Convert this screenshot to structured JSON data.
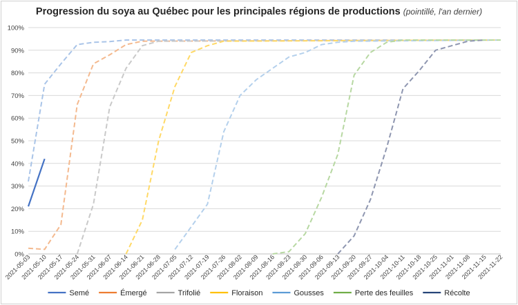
{
  "chart_data": {
    "type": "line",
    "title": "Progression du soya au Québec pour les principales régions de productions",
    "subtitle": "(pointillé, l'an dernier)",
    "xlabel": "",
    "ylabel": "",
    "ylim": [
      0,
      100
    ],
    "y_ticks": [
      "0%",
      "10%",
      "20%",
      "30%",
      "40%",
      "50%",
      "60%",
      "70%",
      "80%",
      "90%",
      "100%"
    ],
    "categories": [
      "2021-05-03",
      "2021-05-10",
      "2021-05-17",
      "2021-05-24",
      "2021-05-31",
      "2021-06-07",
      "2021-06-14",
      "2021-06-21",
      "2021-06-28",
      "2021-07-05",
      "2021-07-12",
      "2021-07-19",
      "2021-07-26",
      "2021-08-02",
      "2021-08-09",
      "2021-08-16",
      "2021-08-23",
      "2021-08-30",
      "2021-09-06",
      "2021-09-13",
      "2021-09-20",
      "2021-09-27",
      "2021-10-04",
      "2021-10-11",
      "2021-10-18",
      "2021-10-25",
      "2021-11-01",
      "2021-11-08",
      "2021-11-15",
      "2021-11-22"
    ],
    "grid": true,
    "legend_position": "bottom",
    "series": [
      {
        "name": "Semé",
        "color": "#4472C4",
        "dashed": false,
        "x": [
          0,
          1
        ],
        "values": [
          21,
          42
        ]
      },
      {
        "name": "Émergé",
        "color": "#ED7D31",
        "dashed": false,
        "x": [],
        "values": []
      },
      {
        "name": "Trifolié",
        "color": "#A5A5A5",
        "dashed": false,
        "x": [],
        "values": []
      },
      {
        "name": "Floraison",
        "color": "#FFC000",
        "dashed": false,
        "x": [],
        "values": []
      },
      {
        "name": "Gousses",
        "color": "#5B9BD5",
        "dashed": false,
        "x": [],
        "values": []
      },
      {
        "name": "Perte des feuilles",
        "color": "#70AD47",
        "dashed": false,
        "x": [],
        "values": []
      },
      {
        "name": "Récolte",
        "color": "#264478",
        "dashed": false,
        "x": [],
        "values": []
      },
      {
        "name": "",
        "color": "#A9C4E8",
        "dashed": true,
        "x": [
          0,
          1,
          2,
          3,
          4,
          5,
          6,
          29
        ],
        "values": [
          32,
          75,
          84,
          92.5,
          93.5,
          93.8,
          94.5,
          94.5
        ]
      },
      {
        "name": "",
        "color": "#F4B98E",
        "dashed": true,
        "x": [
          0,
          1,
          2,
          3,
          4,
          5,
          6,
          7,
          29
        ],
        "values": [
          2.5,
          2,
          13,
          66,
          84,
          88,
          92.5,
          94,
          94.5
        ]
      },
      {
        "name": "",
        "color": "#C9C9C9",
        "dashed": true,
        "x": [
          3,
          4,
          5,
          6,
          7,
          8,
          29
        ],
        "values": [
          0,
          22,
          65,
          82,
          92,
          94,
          94.5
        ]
      },
      {
        "name": "",
        "color": "#FFD966",
        "dashed": true,
        "x": [
          6,
          7,
          8,
          9,
          10,
          11,
          12,
          29
        ],
        "values": [
          0,
          15,
          50,
          74,
          89,
          92,
          94,
          94.5
        ]
      },
      {
        "name": "",
        "color": "#B4D0EC",
        "dashed": true,
        "x": [
          9,
          10,
          11,
          12,
          13,
          14,
          15,
          16,
          17,
          18,
          19,
          20,
          29
        ],
        "values": [
          2,
          12,
          22,
          54,
          70,
          77,
          82,
          87,
          89,
          92.5,
          93.5,
          94,
          94.5
        ]
      },
      {
        "name": "",
        "color": "#B7D8A2",
        "dashed": true,
        "x": [
          15,
          16,
          17,
          18,
          19,
          20,
          21,
          22,
          23,
          29
        ],
        "values": [
          0,
          1,
          9,
          25,
          44,
          79,
          89,
          93.5,
          94.5,
          94.5
        ]
      },
      {
        "name": "",
        "color": "#8E96B0",
        "dashed": true,
        "x": [
          19,
          20,
          21,
          22,
          23,
          24,
          25,
          26,
          27,
          28
        ],
        "values": [
          0,
          8,
          24,
          47,
          73,
          81,
          90,
          92,
          94,
          94.5
        ]
      }
    ]
  }
}
